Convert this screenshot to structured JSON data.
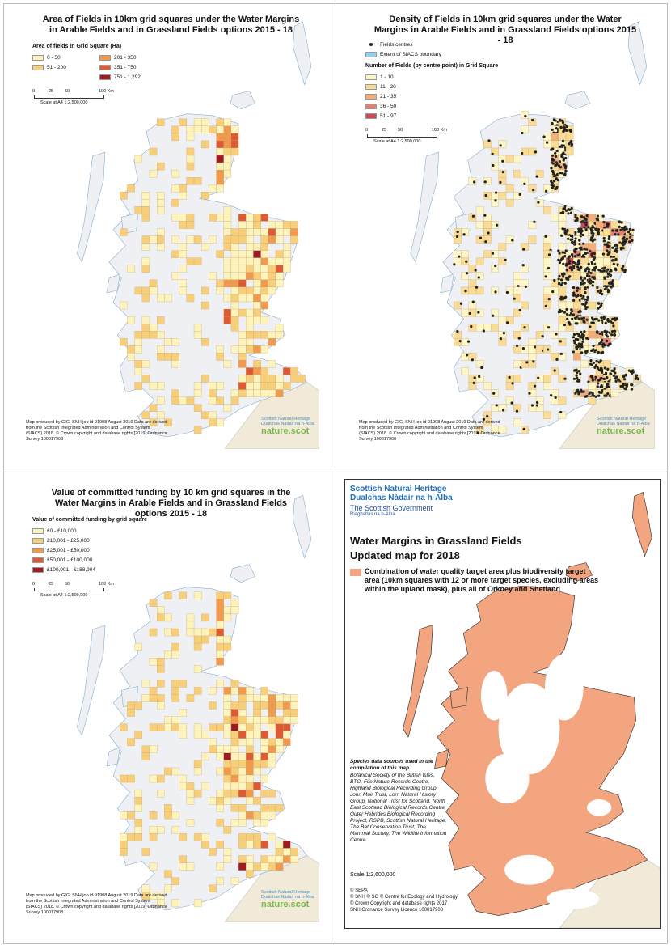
{
  "panels": [
    {
      "title": "Area of Fields in 10km grid squares under the Water Margins in Arable Fields and in Grassland Fields options 2015 - 18",
      "legend_title": "Area of fields in Grid Square (Ha)",
      "legend": [
        {
          "label": "0 - 50",
          "color": "#fdf3bd"
        },
        {
          "label": "51 - 200",
          "color": "#f7cf7a"
        },
        {
          "label": "201 - 350",
          "color": "#ef9a4e"
        },
        {
          "label": "351 - 750",
          "color": "#de5a35"
        },
        {
          "label": "751 - 1,292",
          "color": "#9e1b24"
        }
      ],
      "scale_ticks": [
        "0",
        "25",
        "50",
        "100 Km"
      ],
      "scale_label": "Scale at A4 1:2,500,000",
      "credit": "Map produced by GIG, SNH job id 91908 August 2019 Data are derived from the Scottish Integrated Administration and Control System (SIACS) 2018. © Crown copyright and database rights [2019] Ordnance Survey 100017908",
      "logo": [
        "Scottish Natural Heritage",
        "Dualchas Nàdair na h-Alba",
        "nature.scot"
      ]
    },
    {
      "title": "Density of Fields in 10km grid squares under the Water Margins in Arable Fields and in Grassland Fields options 2015 - 18",
      "extra_legend": [
        {
          "label": "Fields centres",
          "color": "#222222"
        },
        {
          "label": "Extent of SIACS boundary",
          "color": "#8fd0f0"
        }
      ],
      "legend_title": "Number of Fields (by centre point) in Grid Square",
      "legend": [
        {
          "label": "1 - 10",
          "color": "#fdf6c8"
        },
        {
          "label": "11 - 20",
          "color": "#f8dc98"
        },
        {
          "label": "21 - 35",
          "color": "#f1ad7c"
        },
        {
          "label": "36 - 50",
          "color": "#e57f6e"
        },
        {
          "label": "51 - 97",
          "color": "#cc4b5a"
        }
      ],
      "scale_ticks": [
        "0",
        "25",
        "50",
        "100 Km"
      ],
      "scale_label": "Scale at A4 1:2,500,000",
      "credit": "Map produced by GIG, SNH job id 91908 August 2019 Data are derived from the Scottish Integrated Administration and Control System (SIACS) 2018. © Crown copyright and database rights [2019] Ordnance Survey 100017908",
      "logo": [
        "Scottish Natural Heritage",
        "Dualchas Nàdair na h-Alba",
        "nature.scot"
      ]
    },
    {
      "title": "Value of committed funding by 10 km grid squares in the Water Margins in Arable Fields and in Grassland Fields options 2015 - 18",
      "legend_title": "Value of committed funding by grid square",
      "legend": [
        {
          "label": "£0 - £10,000",
          "color": "#fdf3bd"
        },
        {
          "label": "£10,001 - £25,000",
          "color": "#f7cf7a"
        },
        {
          "label": "£25,001 - £50,000",
          "color": "#ef9a4e"
        },
        {
          "label": "£50,001 - £100,000",
          "color": "#de5a35"
        },
        {
          "label": "£100,001 - £188,904",
          "color": "#9e1b24"
        }
      ],
      "scale_ticks": [
        "0",
        "25",
        "50",
        "100 Km"
      ],
      "scale_label": "Scale at A4 1:2,500,000",
      "credit": "Map produced by GIG, SNH job id 91908 August 2019 Data are derived from the Scottish Integrated Administration and Control System (SIACS) 2018. © Crown copyright and database rights [2019] Ordnance Survey 100017908",
      "logo": [
        "Scottish Natural Heritage",
        "Dualchas Nàdair na h-Alba",
        "nature.scot"
      ]
    }
  ],
  "grassland": {
    "logos": [
      "Scottish Natural Heritage",
      "Dualchas Nàdair na h-Alba",
      "The Scottish Government",
      "Riaghaltas na h-Alba"
    ],
    "title": "Water Margins in Grassland Fields",
    "subtitle": "Updated map for 2018",
    "legend": {
      "label": "Combination of water quality target area plus biodiversity target area (10km squares with 12 or more target species, excluding areas within the upland mask), plus all of Orkney and Shetland",
      "color": "#f2a57e"
    },
    "sources_heading": "Species data sources used in the compilation of this map",
    "sources": "Botanical Society of the British Isles, BTO, Fife Nature Records Centre, Highland Biological Recording Group, John Muir Trust, Lorn Natural History Group, National Trust for Scotland, North East Scotland Biological Records Centre, Outer Hebrides Biological Recording Project, RSPB, Scottish Natural Heritage, The Bat Conservation Trust, The Mammal Society, The Wildlife Information Centre",
    "scale": "Scale  1:2,600,000",
    "credits": [
      "© SEPA",
      "© SNH © SG © Centre for Ecology and Hydrology",
      "© Crown Copyright and database rights 2017",
      "SNH Ordnance Survey Licence 100017908"
    ]
  }
}
